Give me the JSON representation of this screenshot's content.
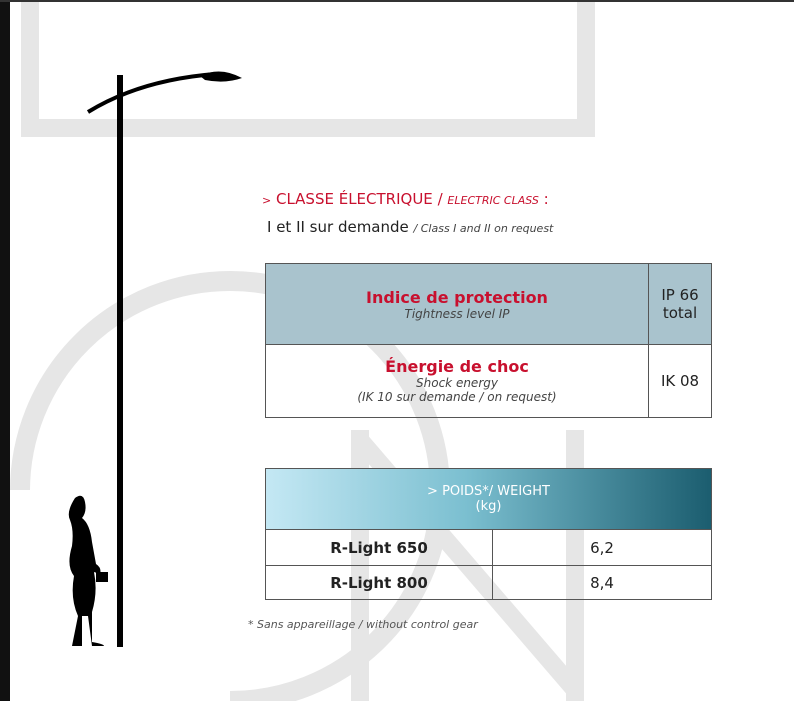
{
  "electric_class": {
    "prefix": ">",
    "title": "CLASSE ÉLECTRIQUE",
    "separator": "/",
    "title_en": "ELECTRIC CLASS",
    "colon": ":",
    "value": "I et II sur demande",
    "value_en": "/ Class I and II on request"
  },
  "protection_table": {
    "rows": [
      {
        "title": "Indice de protection",
        "subtitle": "Tightness level IP",
        "value": [
          "IP 66",
          "total"
        ]
      },
      {
        "title": "Énergie de choc",
        "subtitle": "Shock energy",
        "note": "(IK 10 sur demande / on request)",
        "value": [
          "IK 08"
        ]
      }
    ]
  },
  "weight_table": {
    "header": "> POIDS*/ WEIGHT",
    "unit": "(kg)",
    "rows": [
      [
        "R-Light 650",
        "6,2"
      ],
      [
        "R-Light 800",
        "8,4"
      ]
    ]
  },
  "footnote": "* Sans appareillage / without control gear"
}
